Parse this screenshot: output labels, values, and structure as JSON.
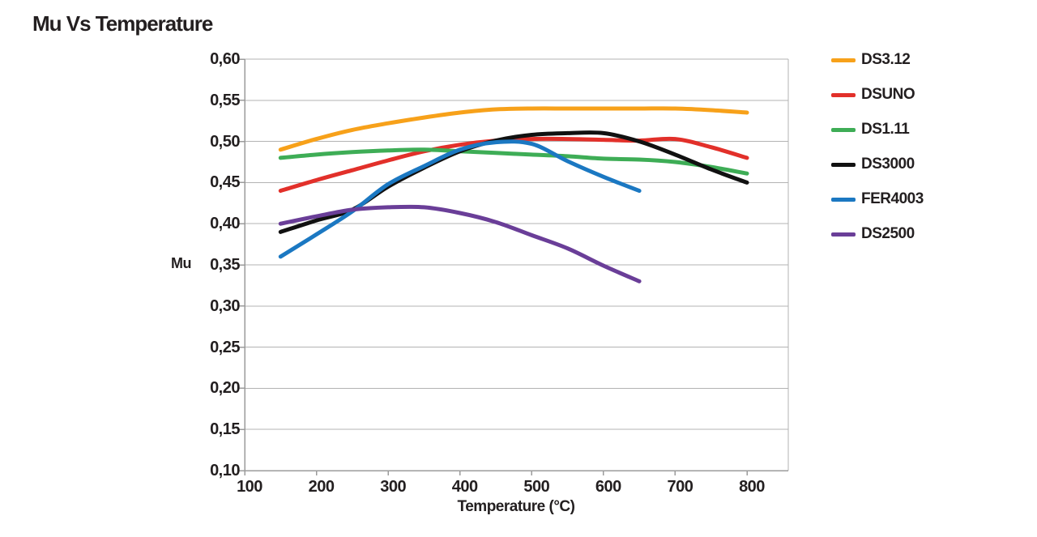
{
  "chart_data": {
    "type": "line",
    "title": "Mu Vs Temperature",
    "xlabel": "Temperature (°C)",
    "ylabel": "Mu",
    "xlim": [
      100,
      857
    ],
    "ylim": [
      0.1,
      0.6
    ],
    "x_ticks": [
      100,
      200,
      300,
      400,
      500,
      600,
      700,
      800
    ],
    "y_ticks": [
      0.6,
      0.55,
      0.5,
      0.45,
      0.4,
      0.35,
      0.3,
      0.25,
      0.2,
      0.15,
      0.1
    ],
    "y_tick_labels": [
      "0,60",
      "0,55",
      "0,50",
      "0,45",
      "0,40",
      "0,35",
      "0,30",
      "0,25",
      "0,20",
      "0,15",
      "0,10"
    ],
    "grid": "horizontal-only",
    "legend_position": "right",
    "text_color": "#231f20",
    "grid_color": "#b3b3b3",
    "axis_color": "#9b9b9b",
    "line_width": 5,
    "series": [
      {
        "name": "DS3.12",
        "color": "#f7a11a",
        "x": [
          150,
          200,
          250,
          300,
          350,
          400,
          450,
          500,
          550,
          600,
          650,
          700,
          750,
          800
        ],
        "values": [
          0.49,
          0.503,
          0.514,
          0.522,
          0.529,
          0.535,
          0.539,
          0.54,
          0.54,
          0.54,
          0.54,
          0.54,
          0.538,
          0.535
        ]
      },
      {
        "name": "DSUNO",
        "color": "#e2302a",
        "x": [
          150,
          200,
          250,
          300,
          350,
          400,
          450,
          500,
          550,
          600,
          650,
          700,
          750,
          800
        ],
        "values": [
          0.44,
          0.453,
          0.465,
          0.477,
          0.488,
          0.496,
          0.501,
          0.503,
          0.503,
          0.502,
          0.501,
          0.503,
          0.493,
          0.48
        ]
      },
      {
        "name": "DS1.11",
        "color": "#3ead56",
        "x": [
          150,
          200,
          250,
          300,
          350,
          400,
          450,
          500,
          550,
          600,
          650,
          700,
          750,
          800
        ],
        "values": [
          0.48,
          0.484,
          0.487,
          0.489,
          0.49,
          0.488,
          0.486,
          0.484,
          0.482,
          0.479,
          0.478,
          0.475,
          0.469,
          0.461
        ]
      },
      {
        "name": "DS3000",
        "color": "#111111",
        "x": [
          150,
          200,
          250,
          300,
          350,
          400,
          450,
          500,
          550,
          600,
          650,
          700,
          750,
          800
        ],
        "values": [
          0.39,
          0.404,
          0.417,
          0.445,
          0.468,
          0.488,
          0.501,
          0.508,
          0.51,
          0.51,
          0.5,
          0.484,
          0.466,
          0.45
        ]
      },
      {
        "name": "FER4003",
        "color": "#1b78c2",
        "x": [
          150,
          200,
          250,
          300,
          350,
          400,
          450,
          500,
          550,
          600,
          650
        ],
        "values": [
          0.36,
          0.387,
          0.415,
          0.448,
          0.47,
          0.49,
          0.499,
          0.497,
          0.476,
          0.457,
          0.44
        ]
      },
      {
        "name": "DS2500",
        "color": "#6a3e98",
        "x": [
          150,
          200,
          250,
          300,
          350,
          400,
          450,
          500,
          550,
          600,
          650
        ],
        "values": [
          0.4,
          0.409,
          0.417,
          0.42,
          0.42,
          0.413,
          0.402,
          0.386,
          0.37,
          0.349,
          0.33
        ]
      }
    ]
  }
}
